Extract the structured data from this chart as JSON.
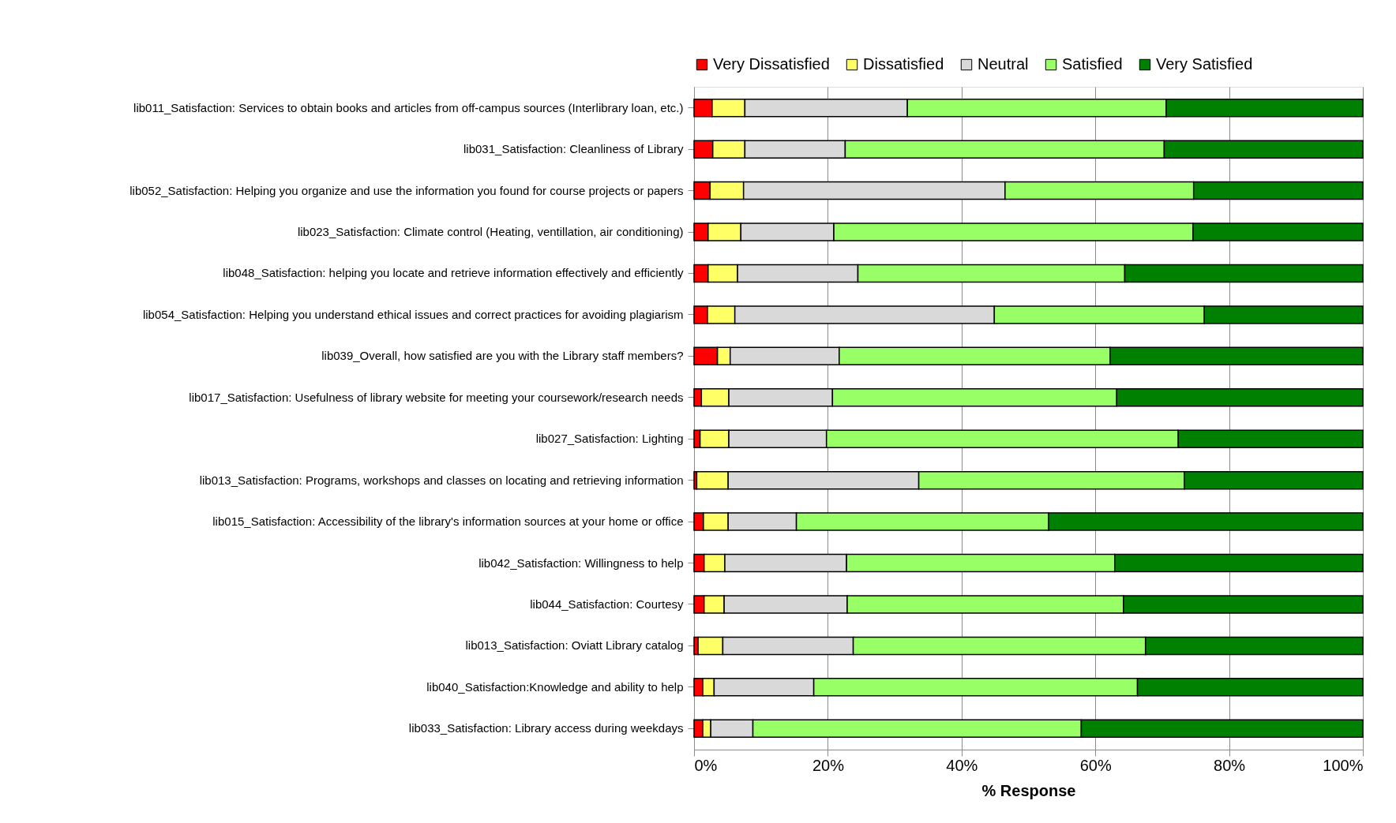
{
  "chart_data": {
    "type": "bar",
    "orientation": "horizontal",
    "stacked": true,
    "categories": [
      "lib011_Satisfaction: Services to obtain books and articles from off-campus sources (Interlibrary loan, etc.)",
      "lib031_Satisfaction: Cleanliness of Library",
      "lib052_Satisfaction: Helping you organize and use the information you found for course projects or papers",
      "lib023_Satisfaction: Climate control (Heating, ventillation, air conditioning)",
      "lib048_Satisfaction: helping you locate and retrieve information effectively and efficiently",
      "lib054_Satisfaction: Helping you understand ethical issues and correct practices for avoiding plagiarism",
      "lib039_Overall, how satisfied are you with the Library staff members?",
      "lib017_Satisfaction: Usefulness of library website for meeting your coursework/research needs",
      "lib027_Satisfaction: Lighting",
      "lib013_Satisfaction: Programs, workshops and classes on locating and retrieving information",
      "lib015_Satisfaction: Accessibility of the library's information sources at your home or office",
      "lib042_Satisfaction: Willingness to help",
      "lib044_Satisfaction: Courtesy",
      "lib013_Satisfaction: Oviatt Library catalog",
      "lib040_Satisfaction:Knowledge and ability to help",
      "lib033_Satisfaction: Library access during weekdays"
    ],
    "series": [
      {
        "name": "Very Dissatisfied",
        "color": "#ff0000",
        "values": [
          2.7,
          2.8,
          2.4,
          2.1,
          2.1,
          2.0,
          3.5,
          1.1,
          0.9,
          0.4,
          1.4,
          1.5,
          1.5,
          0.6,
          1.3,
          1.3
        ]
      },
      {
        "name": "Dissatisfied",
        "color": "#ffff66",
        "values": [
          4.9,
          4.8,
          5.0,
          4.9,
          4.4,
          4.1,
          1.9,
          4.1,
          4.3,
          4.7,
          3.7,
          3.1,
          3.0,
          3.7,
          1.7,
          1.2
        ]
      },
      {
        "name": "Neutral",
        "color": "#d9d9d9",
        "values": [
          24.3,
          15.0,
          39.1,
          13.9,
          18.0,
          38.8,
          16.3,
          15.5,
          14.6,
          28.5,
          10.2,
          18.2,
          18.4,
          19.5,
          14.9,
          6.3
        ]
      },
      {
        "name": "Satisfied",
        "color": "#99ff66",
        "values": [
          38.7,
          47.7,
          28.2,
          53.7,
          39.9,
          31.4,
          40.5,
          42.5,
          52.6,
          39.7,
          37.7,
          40.1,
          41.3,
          43.7,
          48.4,
          49.1
        ]
      },
      {
        "name": "Very Satisfied",
        "color": "#008000",
        "values": [
          29.4,
          29.7,
          25.3,
          25.4,
          35.6,
          23.7,
          37.8,
          36.8,
          27.6,
          26.7,
          47.0,
          37.1,
          35.8,
          32.5,
          33.7,
          42.1
        ]
      }
    ],
    "xlabel": "% Response",
    "xlim": [
      0,
      100
    ],
    "xticks": [
      {
        "value": 0,
        "label": "0%"
      },
      {
        "value": 20,
        "label": "20%"
      },
      {
        "value": 40,
        "label": "40%"
      },
      {
        "value": 60,
        "label": "60%"
      },
      {
        "value": 80,
        "label": "80%"
      },
      {
        "value": 100,
        "label": "100%"
      }
    ],
    "grid": "x",
    "legend": "top"
  }
}
